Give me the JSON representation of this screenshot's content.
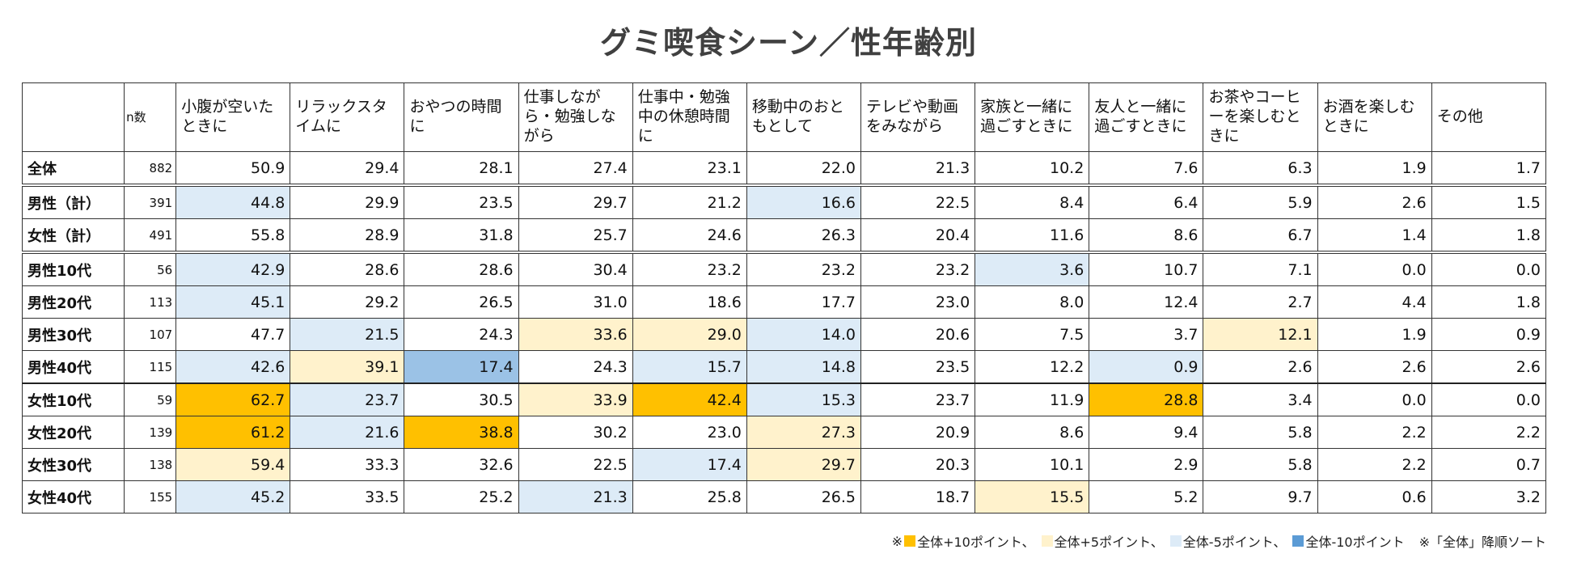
{
  "title": "グミ喫食シーン／性年齢別",
  "chart_data": {
    "type": "table",
    "title": "グミ喫食シーン／性年齢別",
    "n_label": "n数",
    "columns": [
      "小腹が空いたときに",
      "リラックスタイムに",
      "おやつの時間に",
      "仕事しながら・勉強しながら",
      "仕事中・勉強中の休憩時間に",
      "移動中のおともとして",
      "テレビや動画をみながら",
      "家族と一緒に過ごすときに",
      "友人と一緒に過ごすときに",
      "お茶やコーヒーを楽しむときに",
      "お酒を楽しむときに",
      "その他"
    ],
    "rows": [
      {
        "label": "全体",
        "n": "882",
        "values": [
          "50.9",
          "29.4",
          "28.1",
          "27.4",
          "23.1",
          "22.0",
          "21.3",
          "10.2",
          "7.6",
          "6.3",
          "1.9",
          "1.7"
        ],
        "highlights": [
          "",
          "",
          "",
          "",
          "",
          "",
          "",
          "",
          "",
          "",
          "",
          ""
        ]
      },
      {
        "label": "男性（計）",
        "n": "391",
        "values": [
          "44.8",
          "29.9",
          "23.5",
          "29.7",
          "21.2",
          "16.6",
          "22.5",
          "8.4",
          "6.4",
          "5.9",
          "2.6",
          "1.5"
        ],
        "highlights": [
          "m5",
          "",
          "",
          "",
          "",
          "m5",
          "",
          "",
          "",
          "",
          "",
          ""
        ]
      },
      {
        "label": "女性（計）",
        "n": "491",
        "values": [
          "55.8",
          "28.9",
          "31.8",
          "25.7",
          "24.6",
          "26.3",
          "20.4",
          "11.6",
          "8.6",
          "6.7",
          "1.4",
          "1.8"
        ],
        "highlights": [
          "",
          "",
          "",
          "",
          "",
          "",
          "",
          "",
          "",
          "",
          "",
          ""
        ]
      },
      {
        "label": "男性10代",
        "n": "56",
        "values": [
          "42.9",
          "28.6",
          "28.6",
          "30.4",
          "23.2",
          "23.2",
          "23.2",
          "3.6",
          "10.7",
          "7.1",
          "0.0",
          "0.0"
        ],
        "highlights": [
          "m5",
          "",
          "",
          "",
          "",
          "",
          "",
          "m5",
          "",
          "",
          "",
          ""
        ]
      },
      {
        "label": "男性20代",
        "n": "113",
        "values": [
          "45.1",
          "29.2",
          "26.5",
          "31.0",
          "18.6",
          "17.7",
          "23.0",
          "8.0",
          "12.4",
          "2.7",
          "4.4",
          "1.8"
        ],
        "highlights": [
          "m5",
          "",
          "",
          "",
          "",
          "",
          "",
          "",
          "",
          "",
          "",
          ""
        ]
      },
      {
        "label": "男性30代",
        "n": "107",
        "values": [
          "47.7",
          "21.5",
          "24.3",
          "33.6",
          "29.0",
          "14.0",
          "20.6",
          "7.5",
          "3.7",
          "12.1",
          "1.9",
          "0.9"
        ],
        "highlights": [
          "",
          "m5",
          "",
          "p5",
          "p5",
          "m5",
          "",
          "",
          "",
          "p5",
          "",
          ""
        ]
      },
      {
        "label": "男性40代",
        "n": "115",
        "values": [
          "42.6",
          "39.1",
          "17.4",
          "24.3",
          "15.7",
          "14.8",
          "23.5",
          "12.2",
          "0.9",
          "2.6",
          "2.6",
          "2.6"
        ],
        "highlights": [
          "m5",
          "p5",
          "m10",
          "",
          "m5",
          "m5",
          "",
          "",
          "m5",
          "",
          "",
          ""
        ]
      },
      {
        "label": "女性10代",
        "n": "59",
        "values": [
          "62.7",
          "23.7",
          "30.5",
          "33.9",
          "42.4",
          "15.3",
          "23.7",
          "11.9",
          "28.8",
          "3.4",
          "0.0",
          "0.0"
        ],
        "highlights": [
          "p10",
          "m5",
          "",
          "p5",
          "p10",
          "m5",
          "",
          "",
          "p10",
          "",
          "",
          ""
        ]
      },
      {
        "label": "女性20代",
        "n": "139",
        "values": [
          "61.2",
          "21.6",
          "38.8",
          "30.2",
          "23.0",
          "27.3",
          "20.9",
          "8.6",
          "9.4",
          "5.8",
          "2.2",
          "2.2"
        ],
        "highlights": [
          "p10",
          "m5",
          "p10",
          "",
          "",
          "p5",
          "",
          "",
          "",
          "",
          "",
          ""
        ]
      },
      {
        "label": "女性30代",
        "n": "138",
        "values": [
          "59.4",
          "33.3",
          "32.6",
          "22.5",
          "17.4",
          "29.7",
          "20.3",
          "10.1",
          "2.9",
          "5.8",
          "2.2",
          "0.7"
        ],
        "highlights": [
          "p5",
          "",
          "",
          "",
          "m5",
          "p5",
          "",
          "",
          "",
          "",
          "",
          ""
        ]
      },
      {
        "label": "女性40代",
        "n": "155",
        "values": [
          "45.2",
          "33.5",
          "25.2",
          "21.3",
          "25.8",
          "26.5",
          "18.7",
          "15.5",
          "5.2",
          "9.7",
          "0.6",
          "3.2"
        ],
        "highlights": [
          "m5",
          "",
          "",
          "m5",
          "",
          "",
          "",
          "p5",
          "",
          "",
          "",
          ""
        ]
      }
    ]
  },
  "legend": {
    "prefix": "※",
    "items": [
      {
        "label": "全体+10ポイント、",
        "color": "#ffc000"
      },
      {
        "label": "全体+5ポイント、",
        "color": "#fff2cc"
      },
      {
        "label": "全体-5ポイント、",
        "color": "#ddebf7"
      },
      {
        "label": "全体-10ポイント",
        "color": "#5b9bd5"
      }
    ],
    "note": "※「全体」降順ソート"
  }
}
